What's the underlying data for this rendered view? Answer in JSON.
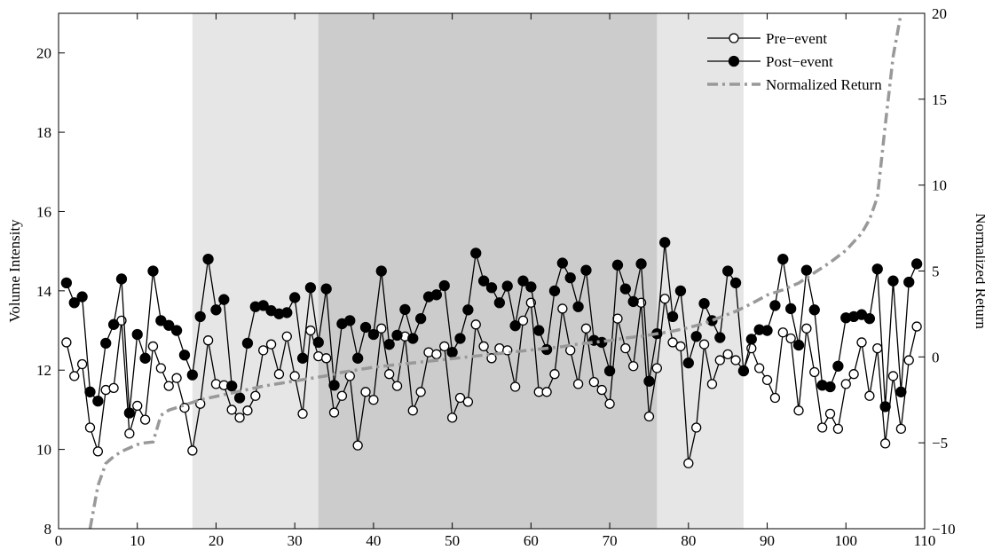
{
  "chart_data": {
    "type": "line",
    "title": "",
    "xlabel": "",
    "ylabel": "Volume Intensity",
    "y2label": "Normalized Return",
    "xlim": [
      0,
      110
    ],
    "ylim": [
      8,
      21
    ],
    "y2lim": [
      -10,
      20
    ],
    "xticks": [
      0,
      10,
      20,
      30,
      40,
      50,
      60,
      70,
      80,
      90,
      100,
      110
    ],
    "yticks": [
      8,
      10,
      12,
      14,
      16,
      18,
      20
    ],
    "y2ticks": [
      -10,
      -5,
      0,
      5,
      10,
      15,
      20
    ],
    "shaded_regions": [
      {
        "x0": 17,
        "x1": 87,
        "color": "#e6e6e6"
      },
      {
        "x0": 33,
        "x1": 76,
        "color": "#cccccc"
      }
    ],
    "legend_position": "top-right",
    "series": [
      {
        "name": "Pre−event",
        "marker": "open-circle",
        "color": "#000000",
        "axis": "left",
        "x": [
          1,
          2,
          3,
          4,
          5,
          6,
          7,
          8,
          9,
          10,
          11,
          12,
          13,
          14,
          15,
          16,
          17,
          18,
          19,
          20,
          21,
          22,
          23,
          24,
          25,
          26,
          27,
          28,
          29,
          30,
          31,
          32,
          33,
          34,
          35,
          36,
          37,
          38,
          39,
          40,
          41,
          42,
          43,
          44,
          45,
          46,
          47,
          48,
          49,
          50,
          51,
          52,
          53,
          54,
          55,
          56,
          57,
          58,
          59,
          60,
          61,
          62,
          63,
          64,
          65,
          66,
          67,
          68,
          69,
          70,
          71,
          72,
          73,
          74,
          75,
          76,
          77,
          78,
          79,
          80,
          81,
          82,
          83,
          84,
          85,
          86,
          87,
          88,
          89,
          90,
          91,
          92,
          93,
          94,
          95,
          96,
          97,
          98,
          99,
          100,
          101,
          102,
          103,
          104,
          105,
          106,
          107,
          108,
          109
        ],
        "values": [
          12.7,
          11.85,
          12.15,
          10.55,
          9.95,
          11.5,
          11.55,
          13.25,
          10.4,
          11.1,
          10.75,
          12.6,
          12.05,
          11.6,
          11.8,
          11.05,
          9.97,
          11.15,
          12.75,
          11.65,
          11.62,
          11.0,
          10.8,
          10.98,
          11.35,
          12.5,
          12.65,
          11.9,
          12.85,
          11.85,
          10.9,
          13.0,
          12.35,
          12.3,
          10.93,
          11.35,
          11.85,
          10.1,
          11.45,
          11.25,
          13.05,
          11.9,
          11.6,
          12.85,
          10.98,
          11.45,
          12.45,
          12.4,
          12.6,
          10.8,
          11.3,
          11.2,
          13.15,
          12.6,
          12.3,
          12.55,
          12.5,
          11.58,
          13.25,
          13.7,
          11.45,
          11.45,
          11.9,
          13.55,
          12.5,
          11.65,
          13.05,
          11.7,
          11.5,
          11.15,
          13.3,
          12.55,
          12.1,
          13.7,
          10.83,
          12.05,
          13.8,
          12.7,
          12.6,
          9.65,
          10.55,
          12.65,
          11.65,
          12.25,
          12.4,
          12.25,
          12.0,
          12.55,
          12.05,
          11.75,
          11.3,
          12.95,
          12.8,
          10.98,
          13.05,
          11.95,
          10.55,
          10.9,
          10.52,
          11.65,
          11.9,
          12.7,
          11.35,
          12.55,
          10.15,
          11.85,
          10.52,
          12.25,
          13.1
        ]
      },
      {
        "name": "Post−event",
        "marker": "filled-circle",
        "color": "#000000",
        "axis": "left",
        "x": [
          1,
          2,
          3,
          4,
          5,
          6,
          7,
          8,
          9,
          10,
          11,
          12,
          13,
          14,
          15,
          16,
          17,
          18,
          19,
          20,
          21,
          22,
          23,
          24,
          25,
          26,
          27,
          28,
          29,
          30,
          31,
          32,
          33,
          34,
          35,
          36,
          37,
          38,
          39,
          40,
          41,
          42,
          43,
          44,
          45,
          46,
          47,
          48,
          49,
          50,
          51,
          52,
          53,
          54,
          55,
          56,
          57,
          58,
          59,
          60,
          61,
          62,
          63,
          64,
          65,
          66,
          67,
          68,
          69,
          70,
          71,
          72,
          73,
          74,
          75,
          76,
          77,
          78,
          79,
          80,
          81,
          82,
          83,
          84,
          85,
          86,
          87,
          88,
          89,
          90,
          91,
          92,
          93,
          94,
          95,
          96,
          97,
          98,
          99,
          100,
          101,
          102,
          103,
          104,
          105,
          106,
          107,
          108,
          109
        ],
        "values": [
          14.2,
          13.7,
          13.85,
          11.45,
          11.22,
          12.68,
          13.15,
          14.3,
          10.92,
          12.9,
          12.3,
          14.5,
          13.25,
          13.13,
          13.0,
          12.38,
          11.88,
          13.35,
          14.8,
          13.52,
          13.78,
          11.6,
          11.3,
          12.68,
          13.6,
          13.63,
          13.5,
          13.42,
          13.45,
          13.83,
          12.3,
          14.08,
          12.7,
          14.05,
          11.62,
          13.17,
          13.25,
          12.3,
          13.08,
          12.9,
          14.5,
          12.65,
          12.88,
          13.53,
          12.8,
          13.3,
          13.85,
          13.9,
          14.13,
          12.45,
          12.8,
          13.52,
          14.95,
          14.25,
          14.08,
          13.7,
          14.12,
          13.12,
          14.25,
          14.1,
          13.0,
          12.52,
          14.0,
          14.7,
          14.33,
          13.6,
          14.52,
          12.75,
          12.7,
          11.98,
          14.65,
          14.05,
          13.73,
          14.68,
          11.72,
          12.92,
          15.22,
          13.35,
          14.0,
          12.18,
          12.85,
          13.68,
          13.25,
          12.82,
          14.5,
          14.2,
          11.98,
          12.78,
          13.02,
          13.0,
          13.63,
          14.8,
          13.55,
          12.63,
          14.52,
          13.52,
          11.62,
          11.58,
          12.1,
          13.32,
          13.35,
          13.4,
          13.3,
          14.55,
          11.08,
          14.25,
          11.45,
          14.22,
          14.68
        ]
      },
      {
        "name": "Normalized Return",
        "style": "dash-dot",
        "color": "#999999",
        "axis": "right",
        "x": [
          4,
          5,
          6,
          7,
          8,
          9,
          10,
          11,
          12,
          13,
          14,
          16,
          18,
          20,
          22,
          24,
          26,
          28,
          30,
          32,
          34,
          36,
          38,
          40,
          42,
          44,
          46,
          48,
          50,
          52,
          54,
          56,
          58,
          60,
          62,
          64,
          66,
          68,
          70,
          72,
          74,
          76,
          78,
          80,
          82,
          84,
          86,
          88,
          90,
          92,
          94,
          96,
          98,
          100,
          102,
          103,
          104,
          105,
          106,
          107
        ],
        "values": [
          -10,
          -7.5,
          -6.2,
          -5.8,
          -5.5,
          -5.3,
          -5.1,
          -5.0,
          -4.95,
          -3.4,
          -3.1,
          -2.8,
          -2.5,
          -2.3,
          -2.1,
          -1.9,
          -1.7,
          -1.55,
          -1.4,
          -1.25,
          -1.1,
          -0.9,
          -0.75,
          -0.6,
          -0.5,
          -0.4,
          -0.3,
          -0.2,
          -0.1,
          0.0,
          0.1,
          0.2,
          0.3,
          0.4,
          0.5,
          0.6,
          0.75,
          0.85,
          0.95,
          1.1,
          1.2,
          1.35,
          1.5,
          1.7,
          1.95,
          2.3,
          2.65,
          3.1,
          3.6,
          3.9,
          4.3,
          4.9,
          5.5,
          6.2,
          7.2,
          8.0,
          9.3,
          13.5,
          17.5,
          20.0
        ]
      }
    ]
  }
}
